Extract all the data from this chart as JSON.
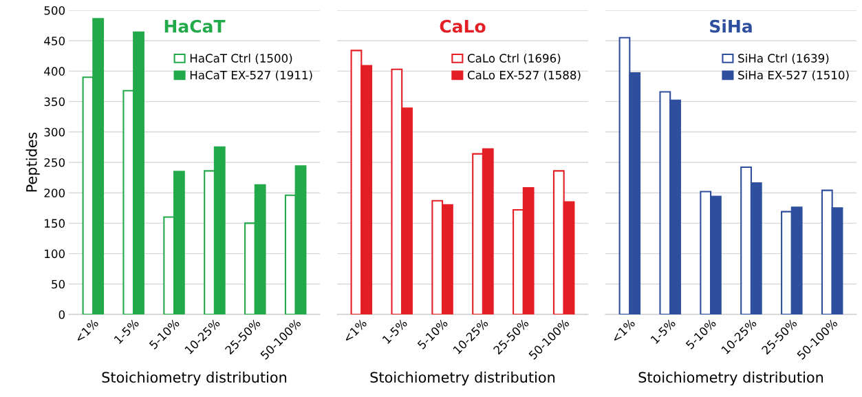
{
  "chart_data": [
    {
      "type": "bar",
      "title": "HaCaT",
      "xlabel": "Stoichiometry distribution",
      "ylabel": "Peptides",
      "categories": [
        "<1%",
        "1-5%",
        "5-10%",
        "10-25%",
        "25-50%",
        "50-100%"
      ],
      "series": [
        {
          "name": "HaCaT Ctrl (1500)",
          "color": "#22a94a",
          "values": [
            390,
            368,
            160,
            236,
            150,
            196
          ]
        },
        {
          "name": "HaCaT EX-527 (1911)",
          "color": "#22a94a",
          "values": [
            486,
            464,
            235,
            275,
            213,
            244
          ]
        }
      ],
      "ylim": [
        0,
        500
      ],
      "yticks": [
        0,
        50,
        100,
        150,
        200,
        250,
        300,
        350,
        400,
        450,
        500
      ],
      "grid": "y",
      "legend": "top right"
    },
    {
      "type": "bar",
      "title": "CaLo",
      "xlabel": "Stoichiometry distribution",
      "categories": [
        "<1%",
        "1-5%",
        "5-10%",
        "10-25%",
        "25-50%",
        "50-100%"
      ],
      "series": [
        {
          "name": "CaLo Ctrl (1696)",
          "color": "#e31e24",
          "values": [
            434,
            403,
            187,
            264,
            172,
            236
          ]
        },
        {
          "name": "CaLo EX-527 (1588)",
          "color": "#e31e24",
          "values": [
            409,
            339,
            180,
            272,
            208,
            185
          ]
        }
      ],
      "ylim": [
        0,
        500
      ],
      "yticks": [
        0,
        50,
        100,
        150,
        200,
        250,
        300,
        350,
        400,
        450,
        500
      ],
      "grid": "y",
      "legend": "top right",
      "tick_labels": "x"
    },
    {
      "type": "bar",
      "title": "SiHa",
      "xlabel": "Stoichiometry distribution",
      "categories": [
        "<1%",
        "1-5%",
        "5-10%",
        "10-25%",
        "25-50%",
        "50-100%"
      ],
      "series": [
        {
          "name": "SiHa Ctrl (1639)",
          "color": "#2e4f9e",
          "values": [
            455,
            366,
            202,
            242,
            169,
            204
          ]
        },
        {
          "name": "SiHa EX-527 (1510)",
          "color": "#2e4f9e",
          "values": [
            397,
            352,
            194,
            216,
            176,
            175
          ]
        }
      ],
      "ylim": [
        0,
        500
      ],
      "yticks": [
        0,
        50,
        100,
        150,
        200,
        250,
        300,
        350,
        400,
        450,
        500
      ],
      "grid": "y",
      "legend": "top right",
      "tick_labels": "x"
    }
  ]
}
